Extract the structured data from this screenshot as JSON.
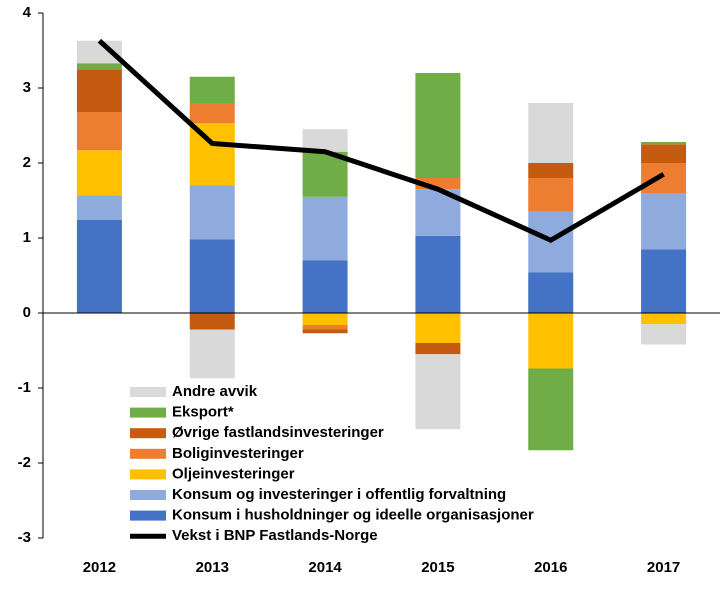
{
  "chart_data": {
    "type": "stacked-bar-line",
    "categories": [
      "2012",
      "2013",
      "2014",
      "2015",
      "2016",
      "2017"
    ],
    "series": [
      {
        "name": "Konsum i husholdninger og ideelle organisasjoner",
        "color": "#4472c4",
        "values": [
          1.24,
          0.98,
          0.7,
          1.03,
          0.54,
          0.85
        ]
      },
      {
        "name": "Konsum og investeringer i offentlig forvaltning",
        "color": "#8faadc",
        "values": [
          0.33,
          0.72,
          0.85,
          0.62,
          0.81,
          0.75
        ]
      },
      {
        "name": "Oljeinvesteringer",
        "color": "#ffc000",
        "values": [
          0.6,
          0.83,
          -0.16,
          -0.4,
          -0.74,
          -0.15
        ]
      },
      {
        "name": "Boliginvesteringer",
        "color": "#ed7d31",
        "values": [
          0.51,
          0.27,
          -0.06,
          0.15,
          0.45,
          0.4
        ]
      },
      {
        "name": "Øvrige fastlandsinvesteringer",
        "color": "#c55a11",
        "values": [
          0.57,
          -0.22,
          -0.05,
          -0.15,
          0.2,
          0.25
        ]
      },
      {
        "name": "Eksport*",
        "color": "#70ad47",
        "values": [
          0.08,
          0.35,
          0.6,
          1.4,
          -1.09,
          0.03
        ]
      },
      {
        "name": "Andre avvik",
        "color": "#d9d9d9",
        "values": [
          0.3,
          -0.65,
          0.3,
          -1.0,
          0.8,
          -0.27
        ]
      }
    ],
    "line": {
      "name": "Vekst i BNP Fastlands-Norge",
      "color": "#000000",
      "values": [
        3.63,
        2.26,
        2.15,
        1.65,
        0.97,
        1.85
      ]
    },
    "ylim": [
      -3,
      4
    ],
    "yticks": [
      -3,
      -2,
      -1,
      0,
      1,
      2,
      3,
      4
    ]
  }
}
